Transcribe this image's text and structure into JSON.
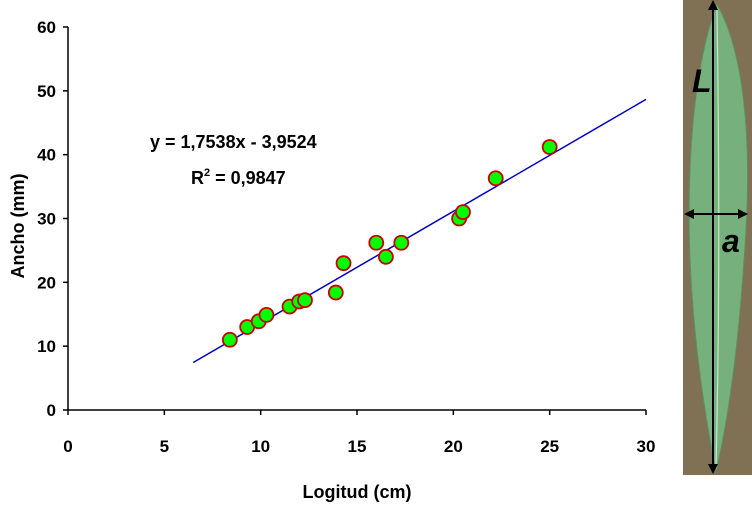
{
  "chart_data": {
    "type": "scatter",
    "xlabel": "Logitud (cm)",
    "ylabel": "Ancho (mm)",
    "xlim": [
      0,
      30
    ],
    "ylim": [
      0,
      60
    ],
    "x_ticks": [
      "0",
      "5",
      "10",
      "15",
      "20",
      "25",
      "30"
    ],
    "y_ticks": [
      "0",
      "10",
      "20",
      "30",
      "40",
      "50",
      "60"
    ],
    "grid": false,
    "legend": "none",
    "series": [
      {
        "marker_fill": "#00ff00",
        "marker_edge": "#cc0000",
        "points": [
          {
            "x": 8.4,
            "y": 11.0
          },
          {
            "x": 9.3,
            "y": 13.0
          },
          {
            "x": 9.9,
            "y": 13.9
          },
          {
            "x": 10.3,
            "y": 14.9
          },
          {
            "x": 11.5,
            "y": 16.2
          },
          {
            "x": 12.0,
            "y": 17.0
          },
          {
            "x": 12.3,
            "y": 17.2
          },
          {
            "x": 13.9,
            "y": 18.4
          },
          {
            "x": 14.3,
            "y": 23.0
          },
          {
            "x": 16.0,
            "y": 26.2
          },
          {
            "x": 16.5,
            "y": 24.0
          },
          {
            "x": 17.3,
            "y": 26.2
          },
          {
            "x": 20.3,
            "y": 30.0
          },
          {
            "x": 20.5,
            "y": 31.0
          },
          {
            "x": 22.2,
            "y": 36.3
          },
          {
            "x": 25.0,
            "y": 41.2
          }
        ]
      }
    ],
    "trendline": {
      "slope": 1.7538,
      "intercept": -3.9524,
      "x_range": [
        6.5,
        30
      ],
      "color": "#0000cc",
      "equation_label": "y = 1,7538x - 3,9524",
      "r2_prefix": "R",
      "r2_sup": "2",
      "r2_value": " = 0,9847"
    }
  },
  "photo": {
    "length_label": "L",
    "width_label": "a",
    "leaf_color": "#76b07c",
    "background_color": "#8a7a5c"
  }
}
